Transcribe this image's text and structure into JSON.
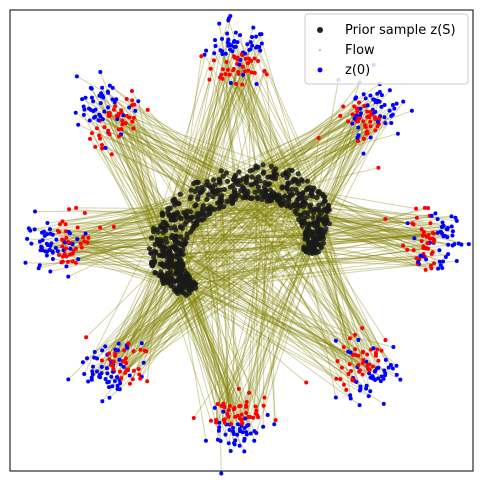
{
  "chart_data": {
    "type": "scatter",
    "title": "",
    "xlabel": "",
    "ylabel": "",
    "xlim": [
      -4.2,
      4.2
    ],
    "ylim": [
      -4.2,
      4.2
    ],
    "grid": false,
    "axis_ticks": false,
    "legend": {
      "placement": "top-right",
      "entries": [
        {
          "label": "Prior sample z(S)",
          "color": "#222222",
          "marker": "dot"
        },
        {
          "label": "Flow",
          "color": "#808000",
          "marker": "tiny-dot"
        },
        {
          "label": "z(0)",
          "color": "#0000ff",
          "marker": "dot"
        }
      ]
    },
    "colors": {
      "prior": "#1a1a1a",
      "flow": "#808000",
      "start_blue": "#0000ff",
      "start_red": "#ff0000"
    },
    "prior_crescent": {
      "description": "inner crescent of prior samples",
      "center": [
        0.0,
        0.0
      ],
      "outer_radius": 1.85,
      "inner_radius": 0.95,
      "angle_start_deg": -40,
      "angle_end_deg": 215
    },
    "clusters": [
      {
        "center": [
          -0.05,
          3.35
        ],
        "spread": 0.28
      },
      {
        "center": [
          2.35,
          2.3
        ],
        "spread": 0.28
      },
      {
        "center": [
          3.45,
          0.0
        ],
        "spread": 0.28
      },
      {
        "center": [
          2.3,
          -2.35
        ],
        "spread": 0.28
      },
      {
        "center": [
          -0.05,
          -3.3
        ],
        "spread": 0.28
      },
      {
        "center": [
          -2.35,
          -2.3
        ],
        "spread": 0.28
      },
      {
        "center": [
          -3.3,
          -0.1
        ],
        "spread": 0.28
      },
      {
        "center": [
          -2.4,
          2.3
        ],
        "spread": 0.28
      }
    ]
  }
}
